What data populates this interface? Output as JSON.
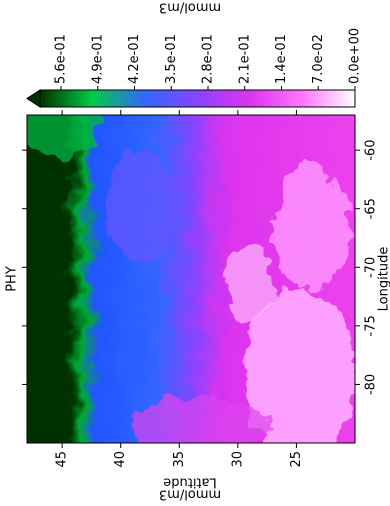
{
  "chart_data": {
    "type": "heatmap",
    "title": "PHY",
    "xlabel": "Longitude",
    "ylabel": "Latitude",
    "ylabel_units": "mmol/m3",
    "xlim": [
      -85,
      -57
    ],
    "xticks": [
      -80,
      -75,
      -70,
      -65,
      -60
    ],
    "ylim": [
      20,
      48
    ],
    "yticks": [
      25,
      30,
      35,
      40,
      45
    ],
    "colorbar": {
      "label": "mmol/m3",
      "lim": [
        0,
        0.6
      ],
      "extend": "max",
      "colormap": [
        "#ffffff",
        "#ff77ff",
        "#dd33ee",
        "#8844ff",
        "#3366ff",
        "#00cc44",
        "#003300"
      ],
      "ticks": [
        {
          "value": 0,
          "label": "0.0e+00"
        },
        {
          "value": 0.07,
          "label": "7.0e-02"
        },
        {
          "value": 0.14,
          "label": "1.4e-01"
        },
        {
          "value": 0.21,
          "label": "2.1e-01"
        },
        {
          "value": 0.28,
          "label": "2.8e-01"
        },
        {
          "value": 0.35,
          "label": "3.5e-01"
        },
        {
          "value": 0.42,
          "label": "4.2e-01"
        },
        {
          "value": 0.49,
          "label": "4.9e-01"
        },
        {
          "value": 0.56,
          "label": "5.6e-01"
        }
      ]
    }
  }
}
